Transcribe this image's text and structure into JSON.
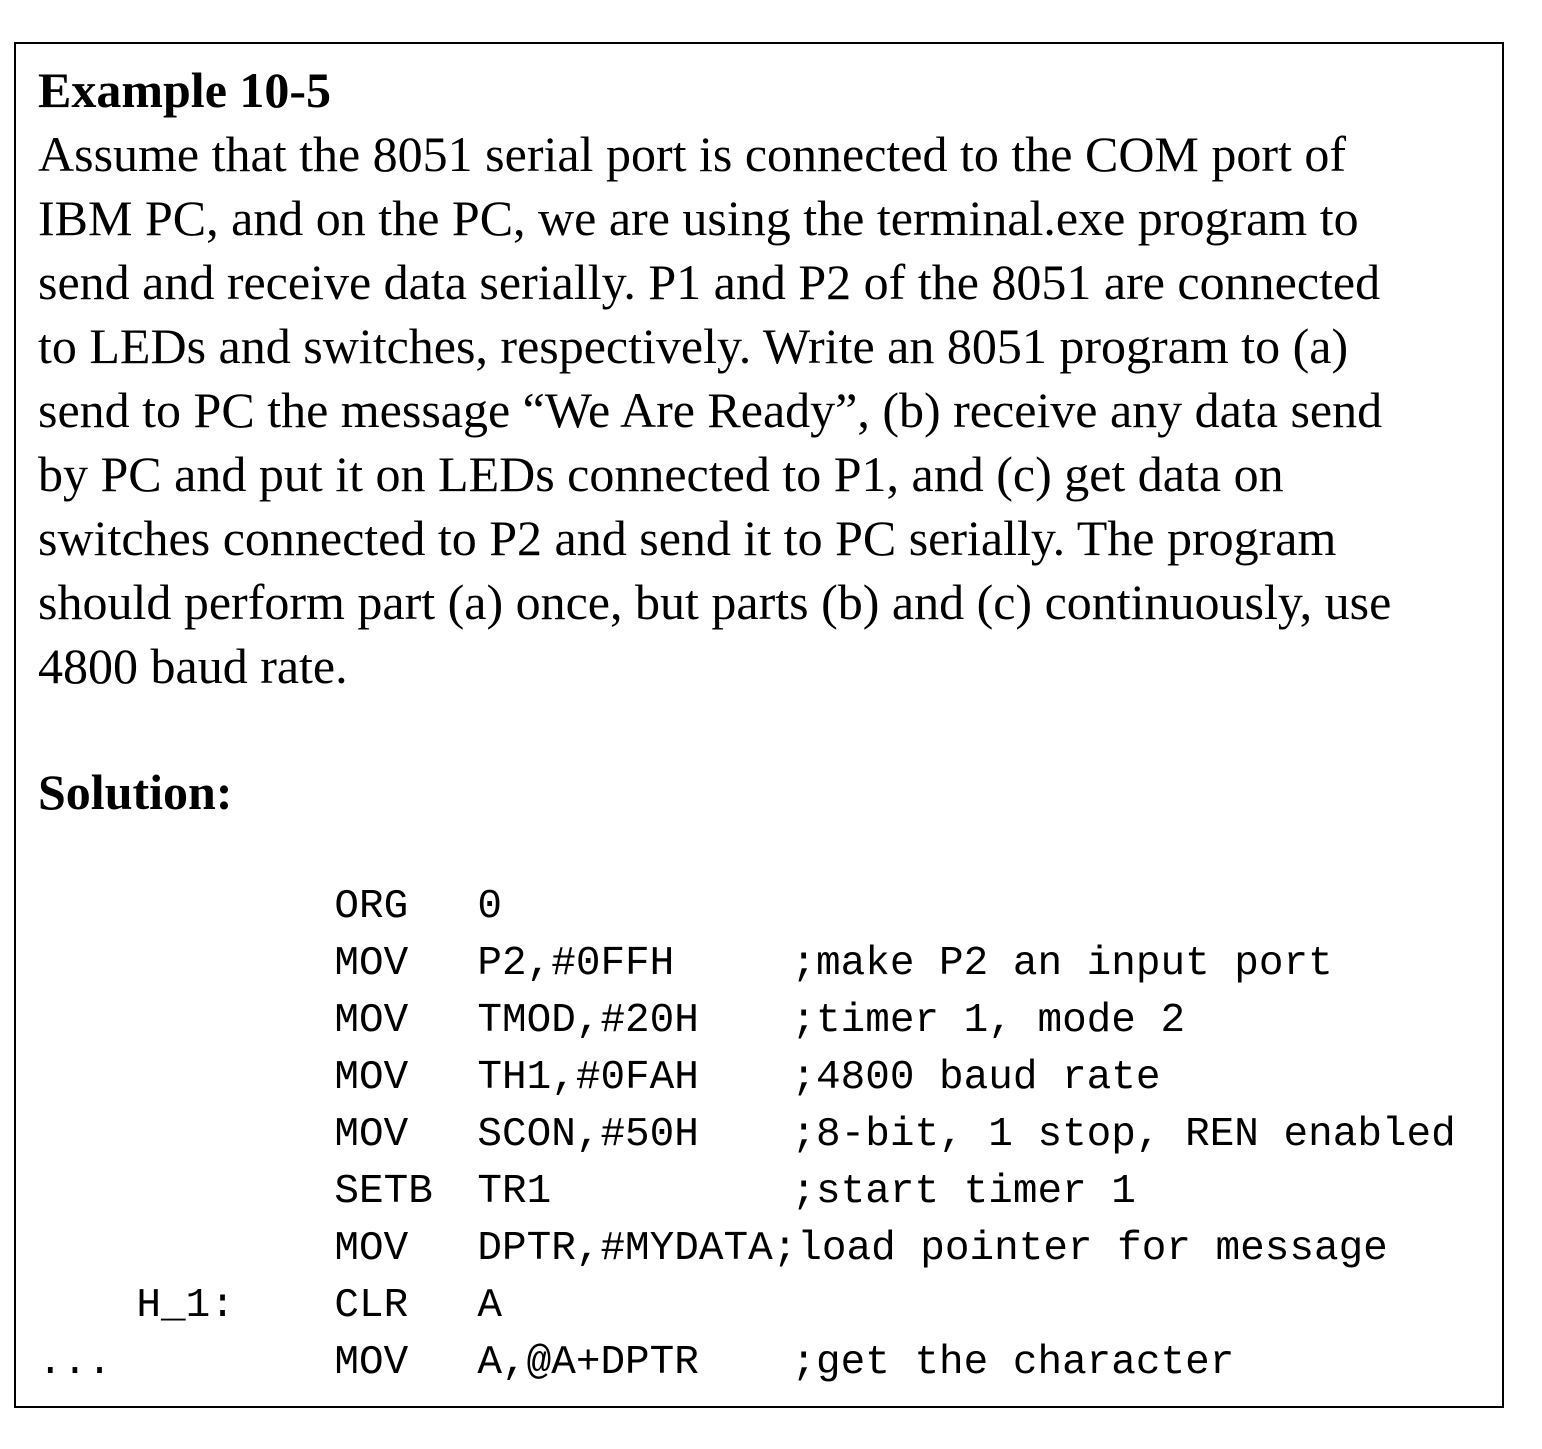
{
  "example": {
    "title": "Example 10-5",
    "paragraph_lines": [
      "Assume that the 8051 serial port is connected to the COM port of",
      "IBM PC, and on the PC, we are using the terminal.exe program to",
      "send and receive data serially. P1 and P2 of the 8051 are connected",
      "to LEDs and switches, respectively. Write an 8051 program to (a)",
      "send to PC the message “We Are Ready”, (b) receive any data send",
      "by PC and put it on LEDs connected to P1, and (c) get data on",
      "switches connected to P2 and send it to PC serially. The program",
      "should perform part (a) once, but parts (b) and (c) continuously, use",
      "4800 baud rate."
    ]
  },
  "solution": {
    "heading": "Solution:",
    "code": [
      {
        "label": "",
        "op": "ORG",
        "args": "0",
        "comment": ""
      },
      {
        "label": "",
        "op": "MOV",
        "args": "P2,#0FFH",
        "comment": ";make P2 an input port"
      },
      {
        "label": "",
        "op": "MOV",
        "args": "TMOD,#20H",
        "comment": ";timer 1, mode 2"
      },
      {
        "label": "",
        "op": "MOV",
        "args": "TH1,#0FAH",
        "comment": ";4800 baud rate"
      },
      {
        "label": "",
        "op": "MOV",
        "args": "SCON,#50H",
        "comment": ";8-bit, 1 stop, REN enabled"
      },
      {
        "label": "",
        "op": "SETB",
        "args": "TR1",
        "comment": ";start timer 1"
      },
      {
        "label": "",
        "op": "MOV",
        "args": "DPTR,#MYDATA",
        "comment": ";load pointer for message"
      },
      {
        "label": "H_1:",
        "op": "CLR",
        "args": "A",
        "comment": ""
      },
      {
        "label": "",
        "op": "MOV",
        "args": "A,@A+DPTR",
        "comment": ";get the character"
      }
    ],
    "ellipsis": "..."
  }
}
